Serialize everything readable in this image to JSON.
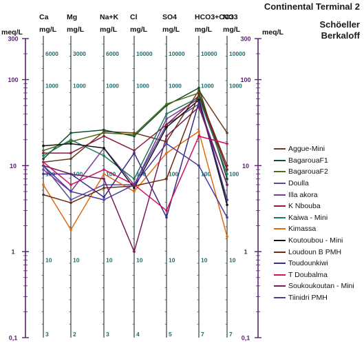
{
  "title": "Continental Terminal 2",
  "subtitle_line1": "Schöeller",
  "subtitle_line2": "Berkaloff",
  "chart_data": {
    "type": "line",
    "title": "Continental Terminal 2",
    "subtitle": "Schöeller Berkaloff",
    "y_scale": "log",
    "y_unit": "meq/L",
    "ylim": [
      0.1,
      300
    ],
    "categories": [
      "Ca",
      "Mg",
      "Na+K",
      "Cl",
      "SO4",
      "HCO3+CO3",
      "NO3"
    ],
    "left_axis": {
      "label": "meq/L",
      "ticks": [
        "300",
        "100",
        "10",
        "1",
        "0,1"
      ]
    },
    "right_axis": {
      "label": "meq/L",
      "ticks": [
        "300",
        "100",
        "10",
        "1",
        "0,1"
      ]
    },
    "columns": [
      {
        "name": "Ca",
        "unit": "mg/L",
        "ticks": [
          "6000",
          "1000",
          "100",
          "10",
          "3"
        ]
      },
      {
        "name": "Mg",
        "unit": "mg/L",
        "ticks": [
          "3000",
          "1000",
          "100",
          "10",
          "2"
        ]
      },
      {
        "name": "Na+K",
        "unit": "mg/L",
        "ticks": [
          "6000",
          "1000",
          "100",
          "10",
          "3"
        ]
      },
      {
        "name": "Cl",
        "unit": "mg/L",
        "ticks": [
          "10000",
          "1000",
          "100",
          "10",
          "4"
        ]
      },
      {
        "name": "SO4",
        "unit": "mg/L",
        "ticks": [
          "10000",
          "1000",
          "100",
          "10",
          "5"
        ]
      },
      {
        "name": "HCO3+CO3",
        "unit": "mg/L",
        "ticks": [
          "10000",
          "1000",
          "100",
          "10",
          "7"
        ]
      },
      {
        "name": "NO3",
        "unit": "mg/L",
        "ticks": [
          "10000",
          "1000",
          "100",
          "10",
          "7"
        ]
      }
    ],
    "series": [
      {
        "name": "Aggue-Mini",
        "color": "#6b3a1a",
        "values": [
          11,
          12,
          25,
          24,
          19,
          75,
          24
        ]
      },
      {
        "name": "BagarouaF1",
        "color": "#0d4d2a",
        "values": [
          12,
          24,
          26,
          22,
          50,
          80,
          7
        ]
      },
      {
        "name": "BagarouaF2",
        "color": "#4a6b10",
        "values": [
          15,
          19,
          24,
          23,
          52,
          70,
          9
        ]
      },
      {
        "name": "Doulla",
        "color": "#5a4a9a",
        "values": [
          10,
          4,
          6,
          6,
          30,
          52,
          6
        ]
      },
      {
        "name": "Illa akora",
        "color": "#7a3a9a",
        "values": [
          9,
          5,
          16,
          6,
          35,
          60,
          4
        ]
      },
      {
        "name": "K Nbouba",
        "color": "#8a1a3a",
        "values": [
          14,
          14,
          22,
          15,
          30,
          65,
          9
        ]
      },
      {
        "name": "Kaiwa - Mini",
        "color": "#1a7a5a",
        "values": [
          13,
          20,
          13,
          7,
          40,
          62,
          8
        ]
      },
      {
        "name": "Kimassa",
        "color": "#e06a10",
        "values": [
          6,
          1.8,
          8,
          5,
          14,
          25,
          1.5
        ]
      },
      {
        "name": "Koutoubou - Mini",
        "color": "#111111",
        "values": [
          17,
          18,
          16,
          5.5,
          28,
          58,
          3.5
        ]
      },
      {
        "name": "Loudoun B PMH",
        "color": "#6b2a10",
        "values": [
          4.6,
          3.7,
          5.5,
          5.8,
          7,
          68,
          10
        ]
      },
      {
        "name": "Toudounkiwi",
        "color": "#3a2a8a",
        "values": [
          8,
          8,
          4.3,
          14,
          2.5,
          55,
          4
        ]
      },
      {
        "name": "T Doubalma",
        "color": "#d0105a",
        "values": [
          11,
          6,
          9,
          6,
          3,
          22,
          18
        ]
      },
      {
        "name": "Soukoukoutan - Mini",
        "color": "#7a1a5a",
        "values": [
          10,
          8,
          7,
          1,
          22,
          48,
          6
        ]
      },
      {
        "name": "Tiinidri PMH",
        "color": "#4a3a9a",
        "values": [
          10,
          5,
          4,
          6,
          18,
          10,
          2.5
        ]
      }
    ]
  }
}
